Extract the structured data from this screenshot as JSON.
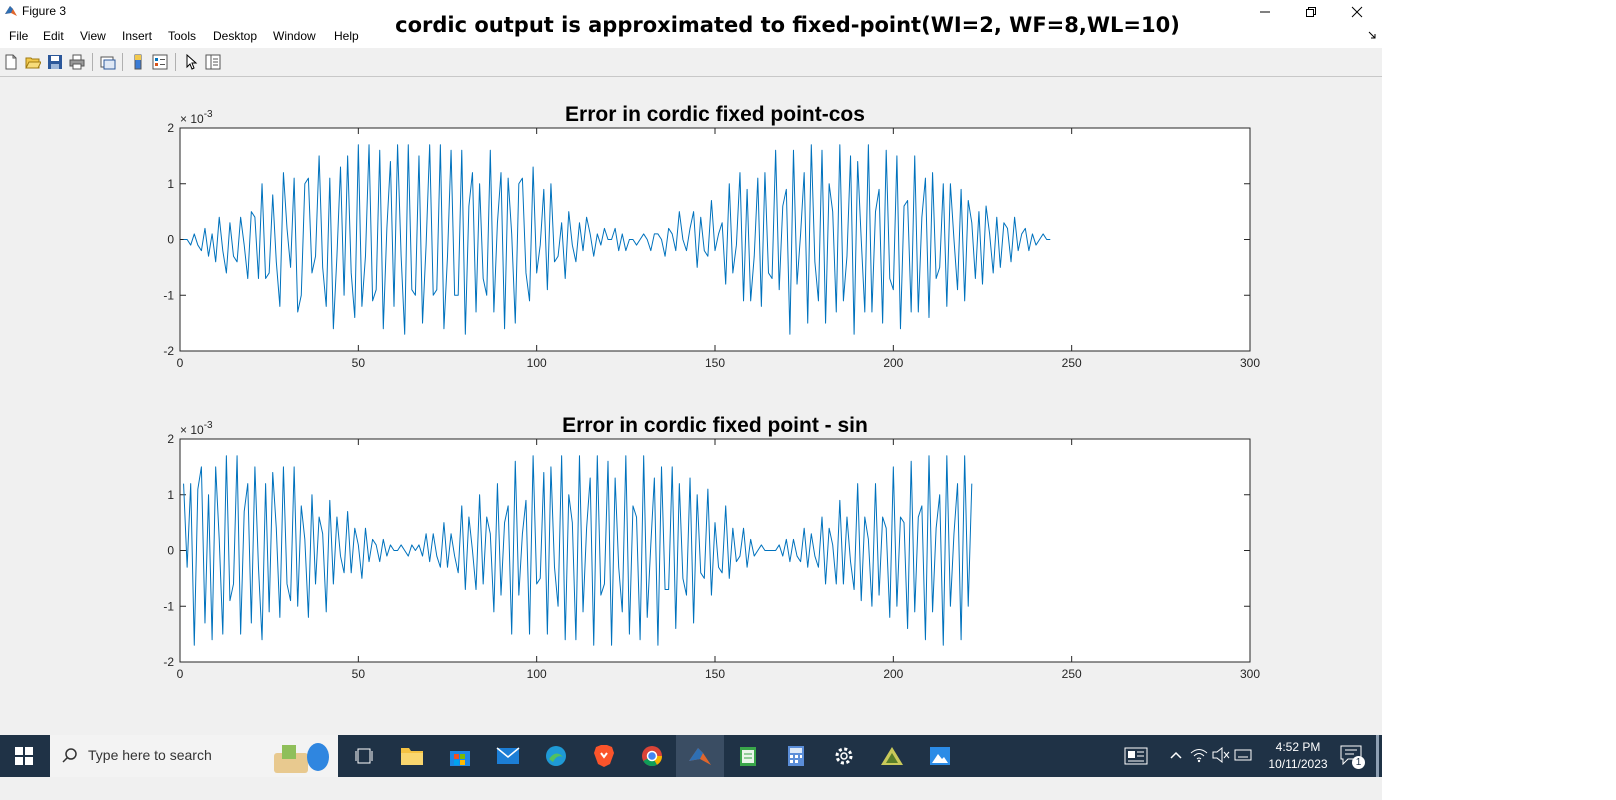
{
  "window": {
    "title": "Figure 3",
    "icon": "matlab-icon",
    "controls": [
      "minimize-icon",
      "restore-icon",
      "close-icon"
    ]
  },
  "menu": [
    "File",
    "Edit",
    "View",
    "Insert",
    "Tools",
    "Desktop",
    "Window",
    "Help"
  ],
  "figure_title": "cordic output is approximated to fixed-point(WI=2, WF=8,WL=10)",
  "toolbar": [
    "new-figure-icon",
    "open-file-icon",
    "save-icon",
    "print-icon",
    "link-plot-icon",
    "colorbar-icon",
    "legend-icon",
    "edit-plot-icon",
    "property-inspector-icon"
  ],
  "chart_data": [
    {
      "type": "line",
      "title": "Error in cordic fixed point-cos",
      "xlabel": "",
      "ylabel": "",
      "xlim": [
        0,
        300
      ],
      "ylim": [
        -0.002,
        0.002
      ],
      "y_exponent_label": "× 10^-3",
      "xticks": [
        "0",
        "50",
        "100",
        "150",
        "200",
        "250",
        "300"
      ],
      "yticks": [
        "-2",
        "-1",
        "0",
        "1",
        "2"
      ],
      "color": "#0072bd",
      "series": [
        {
          "x_start": 1,
          "x_step": 1,
          "values": [
            0,
            0,
            -0.0001,
            0.0001,
            -0.0001,
            -0.0002,
            0.0002,
            -0.0003,
            0.0001,
            -0.0004,
            0.0004,
            -0.0002,
            -0.0006,
            0.0003,
            -0.0003,
            -0.0004,
            0.0004,
            -0.0001,
            -0.0007,
            0.0005,
            0.0004,
            -0.0007,
            0.001,
            -0.0007,
            -0.0006,
            0.0008,
            -0.0004,
            -0.0012,
            0.0012,
            0.0002,
            -0.0005,
            0.0011,
            -0.0013,
            -0.001,
            0.001,
            0.0011,
            -0.0006,
            -0.0003,
            0.0015,
            -0.0005,
            -0.0012,
            0.0011,
            -0.0016,
            -0.0003,
            0.0013,
            -0.001,
            0.0015,
            -0.0006,
            -0.0014,
            0.0017,
            -0.0012,
            -0.0003,
            0.0017,
            -0.0011,
            -0.0009,
            0.0016,
            -0.0016,
            0.0002,
            0.0014,
            -0.0012,
            0.0017,
            -0.0003,
            -0.0017,
            0.0017,
            -0.0009,
            -0.001,
            0.0015,
            -0.0015,
            -0.0001,
            0.0017,
            -0.001,
            -0.0009,
            0.0017,
            -0.0016,
            -0.0003,
            0.0016,
            -0.001,
            -0.001,
            0.0016,
            -0.0017,
            0.0006,
            0.0012,
            -0.0013,
            0.001,
            -0.0007,
            -0.001,
            0.0016,
            -0.0013,
            0.0003,
            0.0012,
            -0.0016,
            0.0011,
            0.0001,
            -0.0015,
            0.001,
            0.0011,
            -0.0006,
            -0.0011,
            0.0013,
            -0.0006,
            -0.0001,
            0.0009,
            -0.0009,
            0.001,
            -0.0004,
            -0.0003,
            0.0003,
            -0.0007,
            0.0005,
            -0.0001,
            -0.0004,
            0.0003,
            -0.0002,
            0.0004,
            0.0001,
            -0.0003,
            0.0001,
            -0.0001,
            0.0002,
            0,
            0,
            0.0002,
            -0.0002,
            0.0001,
            -0.0002,
            0,
            0,
            -0.0001,
            0,
            0.0001,
            0,
            -0.0002,
            0.0001,
            0.0001,
            0,
            -0.0003,
            0.0002,
            0.0001,
            -0.0002,
            0.0005,
            0,
            -0.0002,
            0.0002,
            0.0005,
            -0.0005,
            0.0004,
            -0.0002,
            -0.0003,
            0.0007,
            -0.0002,
            0.0001,
            0.0003,
            -0.0008,
            0.001,
            -0.0006,
            -0.0001,
            0.0012,
            -0.0011,
            0.0009,
            -0.0011,
            -0.0003,
            0.0011,
            -0.0012,
            0.0012,
            -0.0006,
            -0.0007,
            0.0016,
            -0.0009,
            0.0006,
            0.0009,
            -0.0017,
            0.0016,
            -0.0008,
            0.0001,
            0.0012,
            -0.0015,
            0.0017,
            -0.0004,
            -0.0011,
            0.0016,
            -0.0015,
            0.001,
            0.0005,
            -0.0013,
            0.0017,
            -0.0011,
            -0.0003,
            0.0015,
            -0.0017,
            0.0014,
            0,
            -0.0013,
            0.0017,
            -0.0013,
            0.0005,
            0.0009,
            -0.0015,
            0.0016,
            -0.0007,
            -0.0009,
            0.0015,
            -0.0016,
            0.0006,
            0.0007,
            -0.0013,
            0.0015,
            -0.0013,
            0.0004,
            0.0011,
            -0.0014,
            0.0012,
            -0.0007,
            -0.0005,
            0.001,
            -0.0012,
            0.001,
            0,
            -0.0009,
            0.0009,
            -0.0011,
            0.0007,
            0.0003,
            -0.0007,
            0.0005,
            -0.0008,
            0.0006,
            0.0001,
            -0.0006,
            0.0004,
            -0.0005,
            0.0003,
            0.0002,
            -0.0004,
            0.0004,
            -0.0002,
            0.0001,
            0.0002,
            -0.0002,
            0.0001,
            -0.0001,
            0,
            0.0001,
            0,
            0
          ]
        }
      ]
    },
    {
      "type": "line",
      "title": "Error in cordic fixed point - sin",
      "xlabel": "",
      "ylabel": "",
      "xlim": [
        0,
        300
      ],
      "ylim": [
        -0.002,
        0.002
      ],
      "y_exponent_label": "× 10^-3",
      "xticks": [
        "0",
        "50",
        "100",
        "150",
        "200",
        "250",
        "300"
      ],
      "yticks": [
        "-2",
        "-1",
        "0",
        "1",
        "2"
      ],
      "color": "#0072bd",
      "series": [
        {
          "x_start": 1,
          "x_step": 1,
          "values": [
            0.0012,
            -0.0003,
            0.0012,
            -0.0017,
            0.0011,
            0.0015,
            -0.0013,
            0.001,
            -0.0016,
            0.0015,
            0.0002,
            -0.0015,
            0.0017,
            -0.0009,
            -0.0006,
            0.0017,
            -0.0015,
            0.0007,
            0.0012,
            -0.0013,
            0.0015,
            -0.0003,
            -0.0016,
            0.0012,
            -0.0011,
            0.0014,
            0.0004,
            -0.0012,
            0.0015,
            -0.0006,
            -0.0009,
            0.0015,
            -0.001,
            0.0008,
            0.0002,
            -0.0012,
            0.001,
            -0.0006,
            0.0006,
            0.0003,
            -0.0011,
            0.0009,
            -0.0006,
            0.0006,
            -0.0001,
            -0.0004,
            0.0007,
            -0.0004,
            0.0004,
            0.0001,
            -0.0005,
            0.0004,
            -0.0002,
            0.0002,
            0.0001,
            -0.0002,
            0.0002,
            -0.0001,
            0.0001,
            0,
            0,
            0.0001,
            0,
            -0.0001,
            0.0001,
            0,
            0.0001,
            -0.0001,
            0.0003,
            -0.0002,
            0.0003,
            -0.0001,
            -0.0003,
            0.0005,
            -0.0003,
            0.0003,
            -0.0001,
            -0.0004,
            0.0008,
            -0.0007,
            0.0006,
            0,
            -0.0007,
            0.001,
            -0.0006,
            0.0006,
            0.0003,
            -0.0011,
            0.0012,
            -0.0008,
            0.0005,
            0.0008,
            -0.0015,
            0.0016,
            -0.0008,
            0.0003,
            0.0009,
            -0.0015,
            0.0017,
            -0.0006,
            -0.0005,
            0.0014,
            -0.0015,
            0.0015,
            -0.0003,
            -0.001,
            0.0017,
            -0.0016,
            0.001,
            0.0005,
            -0.0016,
            0.0017,
            -0.0011,
            0.0004,
            0.0013,
            -0.0017,
            0.0017,
            -0.0008,
            -0.0006,
            0.0016,
            -0.0017,
            0.0013,
            -0.0003,
            -0.0011,
            0.0017,
            -0.0015,
            0.0008,
            0.0006,
            -0.0016,
            0.0017,
            -0.0012,
            0.0001,
            0.0013,
            -0.0017,
            0.0015,
            -0.0007,
            -0.0007,
            0.0015,
            -0.0014,
            0.0012,
            -0.0005,
            -0.0008,
            0.0013,
            -0.0013,
            0.001,
            -0.0004,
            -0.0005,
            0.0011,
            -0.0008,
            0.0005,
            -0.0003,
            -0.0004,
            0.0008,
            -0.0005,
            0.0004,
            -0.0002,
            -0.0001,
            0.0004,
            -0.0003,
            0.0002,
            -0.0001,
            0,
            0.0001,
            0,
            0,
            0,
            0,
            0.0001,
            -0.0001,
            0.0002,
            -0.0002,
            0.0002,
            -0.0001,
            -0.0002,
            0.0004,
            -0.0003,
            0.0003,
            -0.0001,
            -0.0003,
            0.0006,
            -0.0006,
            0.0004,
            0.0001,
            -0.0006,
            0.0009,
            -0.0006,
            0.0006,
            -0.0002,
            -0.0007,
            0.0012,
            -0.0009,
            0.0006,
            0.0002,
            -0.001,
            0.0012,
            -0.0008,
            0.0006,
            0.0004,
            -0.0012,
            0.0015,
            -0.001,
            0.0006,
            0.0005,
            -0.0014,
            0.0016,
            -0.0011,
            0.0006,
            0.0008,
            -0.0016,
            0.0017,
            -0.0011,
            0.0004,
            0.001,
            -0.0017,
            0.0017,
            -0.001,
            0.0003,
            0.0012,
            -0.0016,
            0.0017,
            -0.001,
            0.0012
          ]
        }
      ]
    }
  ],
  "taskbar": {
    "search_placeholder": "Type here to search",
    "time": "4:52 PM",
    "date": "10/11/2023",
    "notification_count": "1",
    "apps": [
      "task-view-icon",
      "file-explorer-icon",
      "microsoft-store-icon",
      "mail-icon",
      "edge-icon",
      "brave-icon",
      "chrome-icon",
      "matlab-icon",
      "notepad-icon",
      "calculator-icon",
      "settings-icon",
      "app-icon",
      "photos-icon"
    ],
    "tray": [
      "chevron-up-icon",
      "wifi-icon",
      "volume-mute-icon",
      "keyboard-icon"
    ]
  }
}
